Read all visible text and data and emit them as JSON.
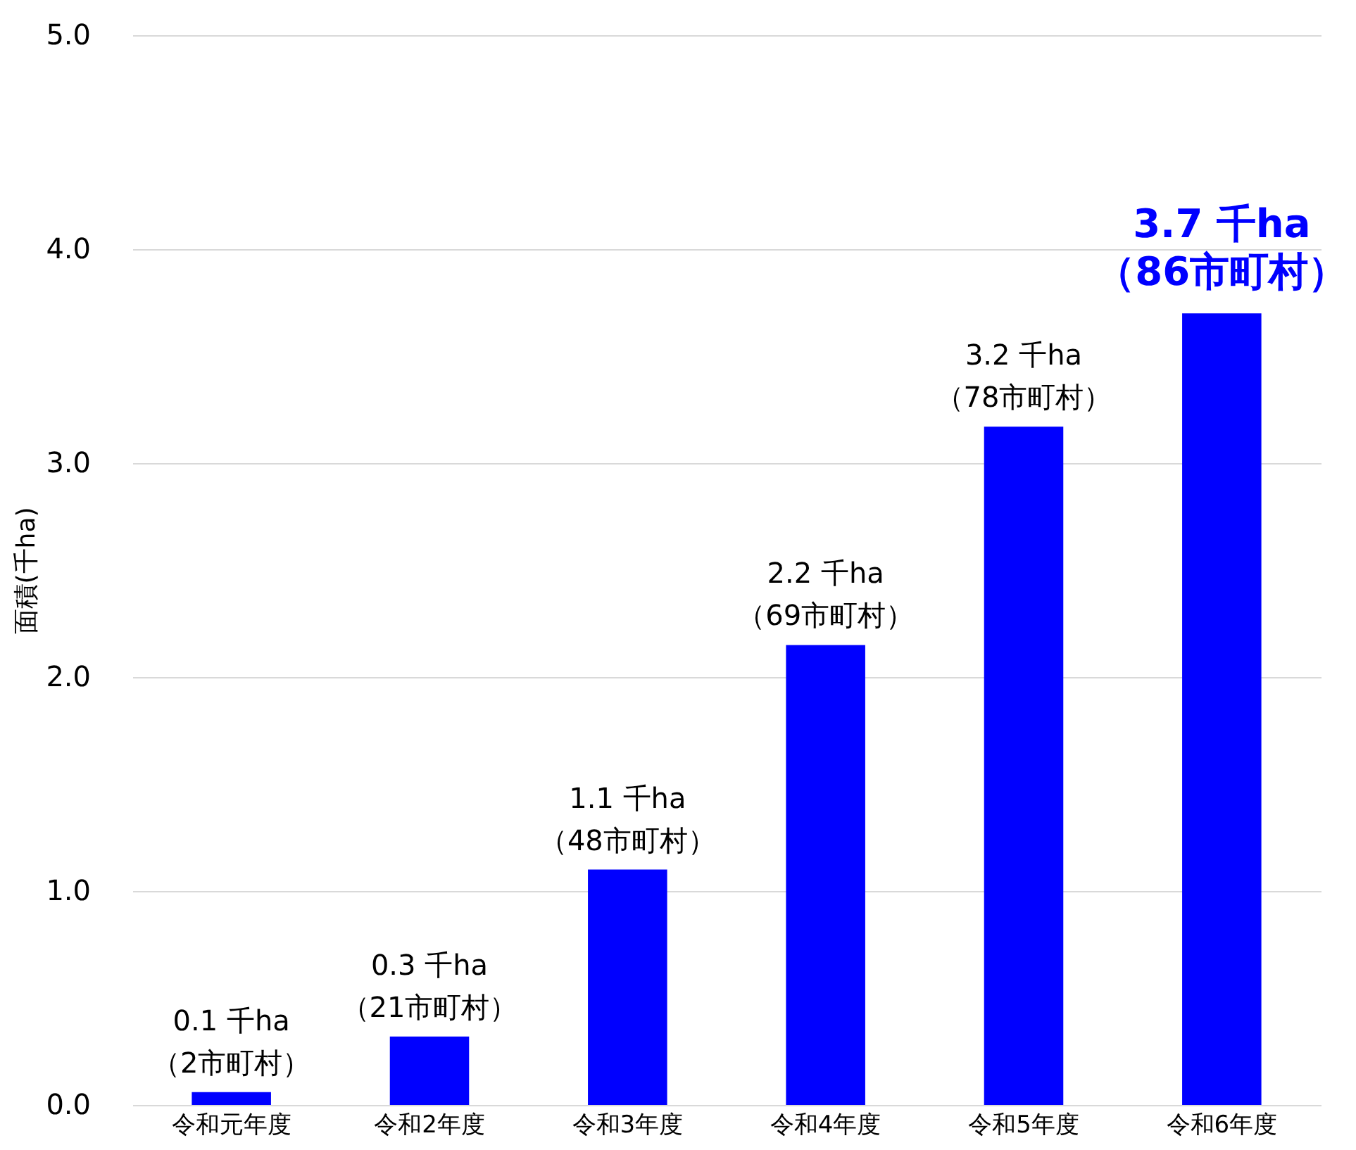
{
  "chart_data": {
    "type": "bar",
    "ylabel": "面積(千ha)",
    "categories": [
      "令和元年度",
      "令和2年度",
      "令和3年度",
      "令和4年度",
      "令和5年度",
      "令和6年度"
    ],
    "values": [
      0.06,
      0.32,
      1.1,
      2.15,
      3.17,
      3.7
    ],
    "value_labels": [
      "0.1 千ha\n（2市町村）",
      "0.3 千ha\n（21市町村）",
      "1.1 千ha\n（48市町村）",
      "2.2 千ha\n（69市町村）",
      "3.2 千ha\n（78市町村）",
      "3.7 千ha\n（86市町村）"
    ],
    "color": "#0000ff",
    "ylim": [
      0,
      5
    ],
    "yticks": [
      {
        "value": 0,
        "label": "0.0"
      },
      {
        "value": 1,
        "label": "1.0"
      },
      {
        "value": 2,
        "label": "2.0"
      },
      {
        "value": 3,
        "label": "3.0"
      },
      {
        "value": 4,
        "label": "4.0"
      },
      {
        "value": 5,
        "label": "5.0"
      }
    ],
    "grid": "y"
  }
}
